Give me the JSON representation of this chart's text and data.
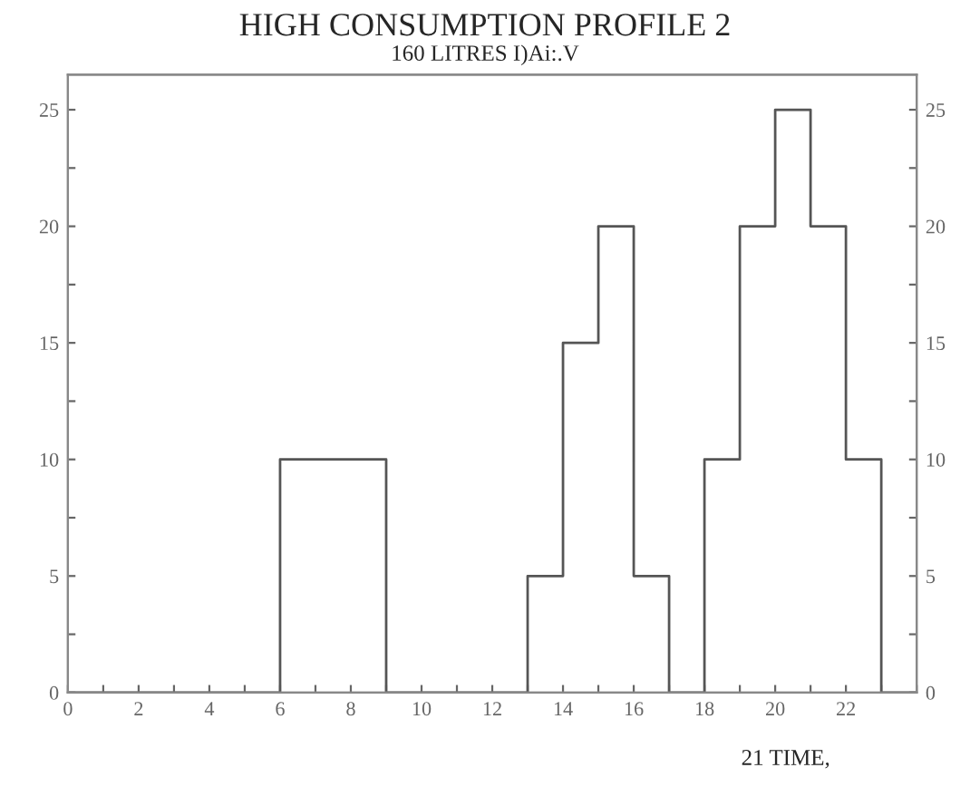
{
  "chart_data": {
    "type": "step",
    "title": "HIGH CONSUMPTION PROFILE 2",
    "subtitle": "160 LITRES I)Ai:.V",
    "xlabel": "21 TIME,",
    "x": [
      0,
      1,
      2,
      3,
      4,
      5,
      6,
      7,
      8,
      9,
      10,
      11,
      12,
      13,
      14,
      15,
      16,
      17,
      18,
      19,
      20,
      21,
      22,
      23,
      24
    ],
    "series": [
      {
        "color": "#555555",
        "values": [
          0,
          0,
          0,
          0,
          0,
          0,
          10,
          10,
          10,
          0,
          0,
          0,
          0,
          5,
          15,
          20,
          5,
          0,
          10,
          20,
          25,
          20,
          10,
          0,
          0
        ]
      }
    ],
    "xlim": [
      0,
      24
    ],
    "xticks": [
      0,
      {
        "value": 1,
        "label": null
      },
      2,
      {
        "value": 3,
        "label": null
      },
      4,
      {
        "value": 5,
        "label": null
      },
      6,
      {
        "value": 7,
        "label": null
      },
      8,
      {
        "value": 9,
        "label": null
      },
      10,
      {
        "value": 11,
        "label": null
      },
      12,
      {
        "value": 13,
        "label": null
      },
      14,
      {
        "value": 15,
        "label": null
      },
      16,
      {
        "value": 17,
        "label": null
      },
      18,
      {
        "value": 19,
        "label": null
      },
      20,
      {
        "value": 21,
        "label": null
      },
      22,
      {
        "value": 23,
        "label": null
      },
      {
        "value": 24,
        "label": null
      }
    ],
    "ylim": [
      0,
      26.5
    ],
    "yticks": [
      0,
      {
        "value": 2.5,
        "label": null
      },
      5,
      {
        "value": 7.5,
        "label": null
      },
      10,
      {
        "value": 12.5,
        "label": null
      },
      15,
      {
        "value": 17.5,
        "label": null
      },
      20,
      {
        "value": 22.5,
        "label": null
      },
      25
    ],
    "y2lim": [
      0,
      26.5
    ],
    "y2ticks": [
      0,
      {
        "value": 2.5,
        "label": null
      },
      5,
      {
        "value": 7.5,
        "label": null
      },
      10,
      {
        "value": 12.5,
        "label": null
      },
      15,
      {
        "value": 17.5,
        "label": null
      },
      20,
      {
        "value": 22.5,
        "label": null
      },
      25
    ],
    "grid": false,
    "legend": false,
    "line_style": "solid"
  }
}
